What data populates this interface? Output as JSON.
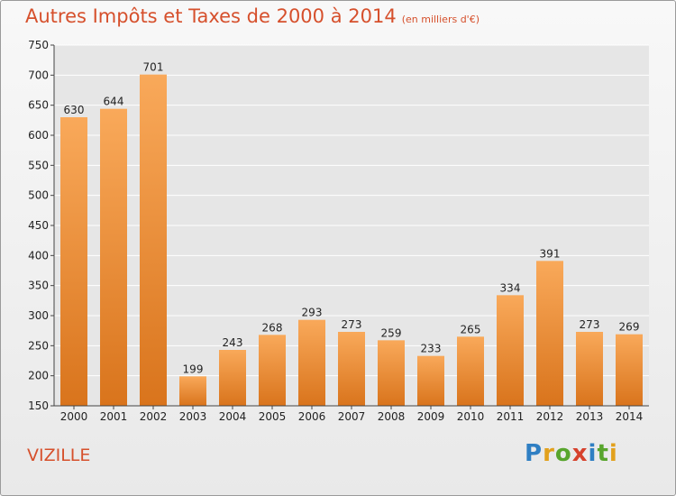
{
  "header": {
    "title": "Autres Impôts et Taxes de 2000 à 2014",
    "unit": "(en milliers d'€)"
  },
  "footer": {
    "commune": "VIZILLE",
    "logo_text": "Proxiti"
  },
  "colors": {
    "title": "#d6502c",
    "bar_top": "#f9a95a",
    "bar_bottom": "#d9741c",
    "grid": "#ffffff"
  },
  "chart_data": {
    "type": "bar",
    "title": "Autres Impôts et Taxes de 2000 à 2014",
    "subtitle": "(en milliers d'€)",
    "xlabel": "",
    "ylabel": "",
    "categories": [
      "2000",
      "2001",
      "2002",
      "2003",
      "2004",
      "2005",
      "2006",
      "2007",
      "2008",
      "2009",
      "2010",
      "2011",
      "2012",
      "2013",
      "2014"
    ],
    "values": [
      630,
      644,
      701,
      199,
      243,
      268,
      293,
      273,
      259,
      233,
      265,
      334,
      391,
      273,
      269
    ],
    "ylim": [
      150,
      750
    ],
    "yticks": [
      150,
      200,
      250,
      300,
      350,
      400,
      450,
      500,
      550,
      600,
      650,
      700,
      750
    ],
    "grid": true,
    "data_labels": true
  }
}
